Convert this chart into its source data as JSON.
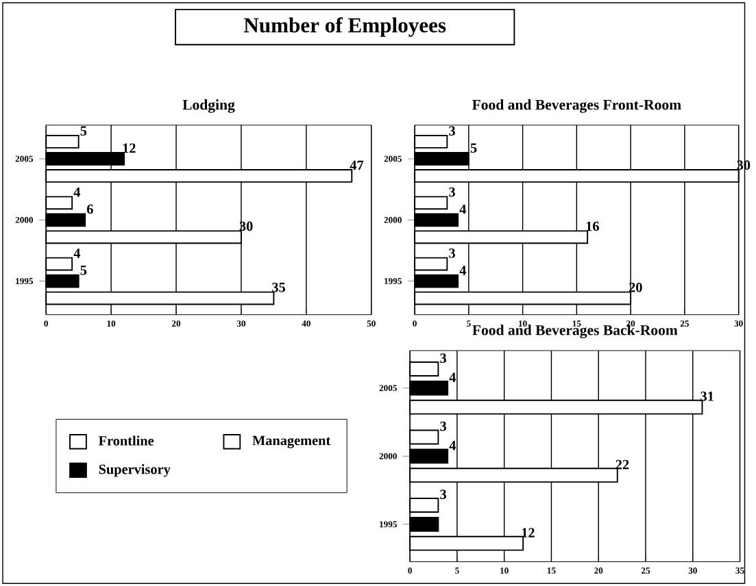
{
  "chart_data": [
    {
      "type": "bar",
      "orientation": "horizontal",
      "title": "Lodging",
      "annotations": [
        "Number of Employees"
      ],
      "categories": [
        "2005",
        "2000",
        "1995"
      ],
      "xlim": [
        0,
        50
      ],
      "xticks": [
        0,
        10,
        20,
        30,
        40,
        50
      ],
      "grid": "x",
      "legend": "bottom",
      "series": [
        {
          "name": "Frontline",
          "color": "#ffffff",
          "values": [
            5,
            4,
            4
          ],
          "value_labels": [
            "5",
            "4",
            "4"
          ]
        },
        {
          "name": "Supervisory",
          "color": "#000000",
          "values": [
            12,
            6,
            5
          ],
          "value_labels": [
            "12",
            "6",
            "5"
          ]
        },
        {
          "name": "Management",
          "color": "#ffffff",
          "values": [
            47,
            30,
            35
          ],
          "value_labels": [
            "47",
            "30",
            "35"
          ]
        }
      ]
    },
    {
      "type": "bar",
      "orientation": "horizontal",
      "title": "Food and Beverages Front-Room",
      "categories": [
        "2005",
        "2000",
        "1995"
      ],
      "xlim": [
        0,
        30
      ],
      "xticks": [
        0,
        5,
        10,
        15,
        20,
        25,
        30
      ],
      "grid": "x",
      "series": [
        {
          "color": "#ffffff",
          "values": [
            3,
            3,
            3
          ],
          "value_labels": [
            "3",
            "3",
            "3"
          ]
        },
        {
          "color": "#000000",
          "values": [
            5,
            4,
            4
          ],
          "value_labels": [
            "5",
            "4",
            "4"
          ]
        },
        {
          "color": "#ffffff",
          "values": [
            30,
            16,
            20
          ],
          "value_labels": [
            "30",
            "16",
            "20"
          ]
        }
      ]
    },
    {
      "type": "bar",
      "orientation": "horizontal",
      "title": "Food and Beverages Back-Room",
      "categories": [
        "2005",
        "2000",
        "1995"
      ],
      "xlim": [
        0,
        35
      ],
      "xticks": [
        0,
        5,
        10,
        15,
        20,
        25,
        30,
        35
      ],
      "grid": "x",
      "series": [
        {
          "color": "#ffffff",
          "values": [
            3,
            3,
            3
          ],
          "value_labels": [
            "3",
            "3",
            "3"
          ]
        },
        {
          "color": "#000000",
          "values": [
            4,
            4,
            3
          ],
          "value_labels": [
            "4",
            "4",
            null
          ]
        },
        {
          "color": "#ffffff",
          "values": [
            31,
            22,
            12
          ],
          "value_labels": [
            "31",
            "22",
            "12"
          ]
        }
      ]
    }
  ]
}
